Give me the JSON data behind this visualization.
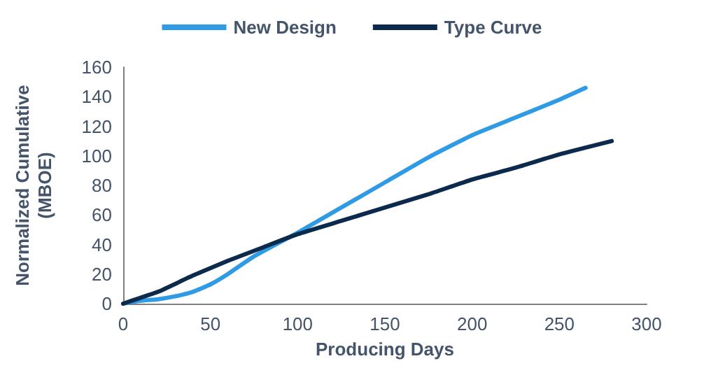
{
  "chart_data": {
    "type": "line",
    "xlabel": "Producing Days",
    "ylabel": "Normalized Cumulative\n(MBOE)",
    "xlim": [
      0,
      300
    ],
    "xticks": [
      0,
      50,
      100,
      150,
      200,
      250,
      300
    ],
    "ylim": [
      0,
      160
    ],
    "yticks": [
      0,
      20,
      40,
      60,
      80,
      100,
      120,
      140,
      160
    ],
    "grid": false,
    "legend": "top",
    "marker": "none",
    "line_style": "solid",
    "series": [
      {
        "name": "New Design",
        "color": "#2f9be4",
        "x": [
          0,
          10,
          20,
          30,
          40,
          50,
          60,
          75,
          100,
          125,
          150,
          175,
          200,
          225,
          250,
          265
        ],
        "values": [
          0,
          2,
          3,
          5,
          8,
          13,
          20,
          32,
          48,
          65,
          82,
          99,
          114,
          126,
          138,
          146
        ]
      },
      {
        "name": "Type Curve",
        "color": "#0c2a4c",
        "x": [
          0,
          10,
          20,
          40,
          60,
          80,
          100,
          125,
          150,
          175,
          200,
          225,
          250,
          280
        ],
        "values": [
          0,
          4,
          8,
          19,
          29,
          38,
          47,
          56,
          65,
          74,
          84,
          92,
          101,
          110
        ]
      }
    ]
  }
}
